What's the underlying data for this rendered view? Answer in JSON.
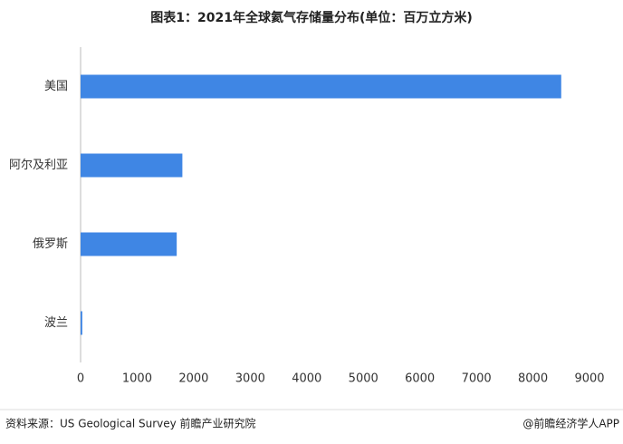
{
  "chart_data": {
    "type": "bar",
    "orientation": "horizontal",
    "title": "图表1：2021年全球氦气存储量分布(单位：百万立方米)",
    "categories": [
      "美国",
      "阿尔及利亚",
      "俄罗斯",
      "波兰"
    ],
    "values": [
      8500,
      1800,
      1700,
      30
    ],
    "color": "#3f86e4",
    "xlim": [
      0,
      9000
    ],
    "xticks": [
      0,
      1000,
      2000,
      3000,
      4000,
      5000,
      6000,
      7000,
      8000,
      9000
    ],
    "grid": false
  },
  "source": "资料来源：US Geological Survey 前瞻产业研究院",
  "credit": "@前瞻经济学人APP"
}
